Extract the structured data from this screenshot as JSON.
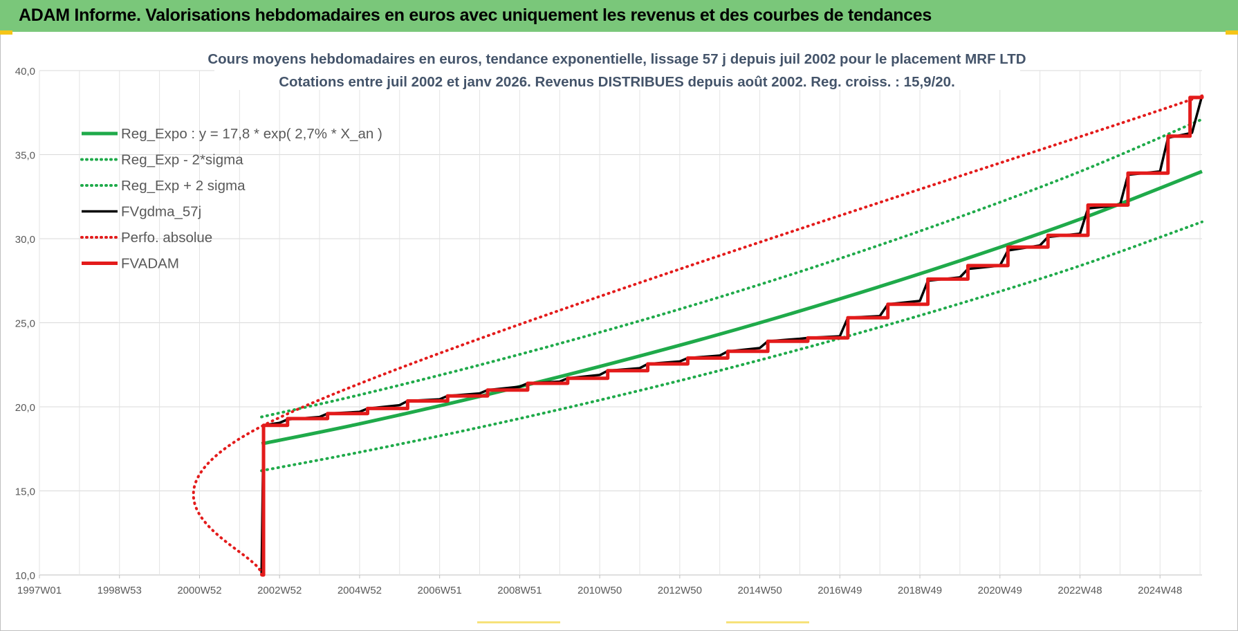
{
  "page": {
    "banner_title": "ADAM Informe. Valorisations hebdomadaires en euros avec uniquement les revenus et des courbes de tendances",
    "colors": {
      "banner": "#7ac77a",
      "accent_corner": "#f5c518"
    }
  },
  "chart_data": {
    "type": "line",
    "title": "Cours moyens hebdomadaires en euros, tendance exponentielle, lissage 57 j depuis juil 2002 pour le placement MRF LTD",
    "subtitle": "Cotations entre juil 2002 et janv 2026. Revenus DISTRIBUES depuis août 2002. Reg. croiss. : 15,9/20.",
    "xlabel": "",
    "ylabel": "",
    "x_range": [
      1997.0,
      2026.05
    ],
    "ylim": [
      10,
      40
    ],
    "yticks": [
      "10,0",
      "15,0",
      "20,0",
      "25,0",
      "30,0",
      "35,0",
      "40,0"
    ],
    "xticks": [
      {
        "label": "1997W01",
        "x": 1997.0
      },
      {
        "label": "1998W53",
        "x": 1999.0
      },
      {
        "label": "2000W52",
        "x": 2001.0
      },
      {
        "label": "2002W52",
        "x": 2003.0
      },
      {
        "label": "2004W52",
        "x": 2005.0
      },
      {
        "label": "2006W51",
        "x": 2007.0
      },
      {
        "label": "2008W51",
        "x": 2009.0
      },
      {
        "label": "2010W50",
        "x": 2011.0
      },
      {
        "label": "2012W50",
        "x": 2013.0
      },
      {
        "label": "2014W50",
        "x": 2015.0
      },
      {
        "label": "2016W49",
        "x": 2017.0
      },
      {
        "label": "2018W49",
        "x": 2019.0
      },
      {
        "label": "2020W49",
        "x": 2021.0
      },
      {
        "label": "2022W48",
        "x": 2023.0
      },
      {
        "label": "2024W48",
        "x": 2025.0
      }
    ],
    "grid": true,
    "legend_placement": "top-left",
    "series": [
      {
        "name": "Reg_Expo : y = 17,8 * exp( 2,7% *  X_an )",
        "color": "#1faa4a",
        "style": "solid-thick",
        "x": [
          2002.55,
          2005,
          2008,
          2011,
          2014,
          2017,
          2020,
          2023,
          2026.05
        ],
        "values": [
          17.8,
          18.99,
          20.62,
          22.4,
          24.32,
          26.42,
          28.69,
          31.16,
          34.0
        ]
      },
      {
        "name": "Reg_Exp - 2*sigma",
        "color": "#1faa4a",
        "style": "dotted",
        "x": [
          2002.55,
          2005,
          2008,
          2011,
          2014,
          2017,
          2020,
          2023,
          2026.05
        ],
        "values": [
          16.2,
          17.3,
          18.78,
          20.4,
          22.16,
          24.07,
          26.14,
          28.39,
          31.0
        ]
      },
      {
        "name": "Reg_Exp + 2 sigma",
        "color": "#1faa4a",
        "style": "dotted",
        "x": [
          2002.55,
          2005,
          2008,
          2011,
          2014,
          2017,
          2020,
          2023,
          2026.05
        ],
        "values": [
          19.4,
          20.71,
          22.49,
          24.43,
          26.53,
          28.82,
          31.3,
          33.99,
          37.1
        ]
      },
      {
        "name": "FVgdma_57j",
        "color": "#000000",
        "style": "solid",
        "x": [
          2002.55,
          2002.6,
          2003.0,
          2003.2,
          2004.0,
          2004.2,
          2005.0,
          2005.2,
          2006.0,
          2006.2,
          2007.0,
          2007.2,
          2008.0,
          2008.2,
          2009.0,
          2009.2,
          2010.0,
          2010.2,
          2011.0,
          2011.2,
          2012.0,
          2012.2,
          2013.0,
          2013.2,
          2014.0,
          2014.2,
          2015.0,
          2015.2,
          2016.0,
          2016.2,
          2017.0,
          2017.2,
          2018.0,
          2018.2,
          2019.0,
          2019.2,
          2020.0,
          2020.2,
          2021.0,
          2021.2,
          2022.0,
          2022.2,
          2023.0,
          2023.2,
          2024.0,
          2024.2,
          2025.0,
          2025.2,
          2025.8,
          2026.05
        ],
        "values": [
          10.0,
          18.9,
          19.05,
          19.25,
          19.4,
          19.6,
          19.7,
          19.9,
          20.1,
          20.35,
          20.45,
          20.65,
          20.8,
          21.0,
          21.2,
          21.4,
          21.5,
          21.7,
          21.9,
          22.15,
          22.3,
          22.55,
          22.7,
          22.9,
          23.05,
          23.3,
          23.5,
          23.9,
          24.05,
          24.1,
          24.2,
          25.3,
          25.4,
          26.1,
          26.3,
          27.5,
          27.7,
          28.2,
          28.4,
          29.3,
          29.6,
          30.1,
          30.3,
          31.8,
          32.0,
          33.8,
          34.0,
          36.0,
          36.3,
          38.5
        ]
      },
      {
        "name": "Perfo. absolue",
        "color": "#e31b1b",
        "style": "dotted",
        "x": [
          2002.55,
          2002.6,
          2026.05
        ],
        "values": [
          10.0,
          18.9,
          38.5
        ]
      },
      {
        "name": "FVADAM",
        "color": "#e31b1b",
        "style": "step-thick",
        "x": [
          2002.55,
          2002.6,
          2003.2,
          2004.2,
          2005.2,
          2006.2,
          2007.2,
          2008.2,
          2009.2,
          2010.2,
          2011.2,
          2012.2,
          2013.2,
          2014.2,
          2015.2,
          2016.2,
          2017.2,
          2018.2,
          2019.2,
          2020.2,
          2021.2,
          2022.2,
          2023.2,
          2024.2,
          2025.2,
          2025.75,
          2026.05
        ],
        "values": [
          10.0,
          18.9,
          19.3,
          19.6,
          19.9,
          20.35,
          20.65,
          21.0,
          21.4,
          21.7,
          22.15,
          22.55,
          22.9,
          23.3,
          23.9,
          24.1,
          25.3,
          26.1,
          27.6,
          28.4,
          29.5,
          30.2,
          32.0,
          33.9,
          36.1,
          38.4,
          38.5
        ]
      }
    ]
  }
}
